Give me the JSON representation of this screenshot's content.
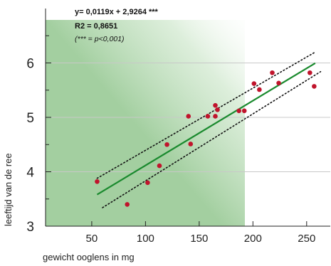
{
  "chart_data": {
    "type": "scatter",
    "xlabel": "gewicht ooglens in mg",
    "ylabel": "leeftijd van de ree",
    "xlim": [
      7,
      272
    ],
    "ylim": [
      3,
      7
    ],
    "x_ticks": [
      50,
      100,
      150,
      200,
      250
    ],
    "y_ticks": [
      3,
      4,
      5,
      6
    ],
    "grid": "horizontal",
    "annotations": {
      "equation": "y= 0,0119x + 2,9264 ***",
      "r2": "R2 = 0,8651",
      "note": "(*** = p<0,001)"
    },
    "regression": {
      "slope": 0.0119,
      "intercept": 2.9264,
      "x_range": [
        55,
        258
      ],
      "color": "#1a8a2e"
    },
    "confidence_band": {
      "upper": [
        [
          55,
          3.88
        ],
        [
          258,
          6.2
        ]
      ],
      "lower": [
        [
          60,
          3.34
        ],
        [
          263,
          5.84
        ]
      ]
    },
    "points": [
      {
        "x": 55,
        "y": 3.82
      },
      {
        "x": 83,
        "y": 3.4
      },
      {
        "x": 102,
        "y": 3.8
      },
      {
        "x": 113,
        "y": 4.11
      },
      {
        "x": 120,
        "y": 4.5
      },
      {
        "x": 140,
        "y": 5.02
      },
      {
        "x": 142,
        "y": 4.51
      },
      {
        "x": 158,
        "y": 5.02
      },
      {
        "x": 165,
        "y": 5.22
      },
      {
        "x": 165,
        "y": 5.02
      },
      {
        "x": 167,
        "y": 5.14
      },
      {
        "x": 187,
        "y": 5.12
      },
      {
        "x": 192,
        "y": 5.12
      },
      {
        "x": 201,
        "y": 5.62
      },
      {
        "x": 206,
        "y": 5.51
      },
      {
        "x": 218,
        "y": 5.82
      },
      {
        "x": 224,
        "y": 5.63
      },
      {
        "x": 253,
        "y": 5.82
      },
      {
        "x": 257,
        "y": 5.57
      }
    ],
    "colors": {
      "points": "#c0142c",
      "gradient": "#a3cfa0"
    }
  }
}
